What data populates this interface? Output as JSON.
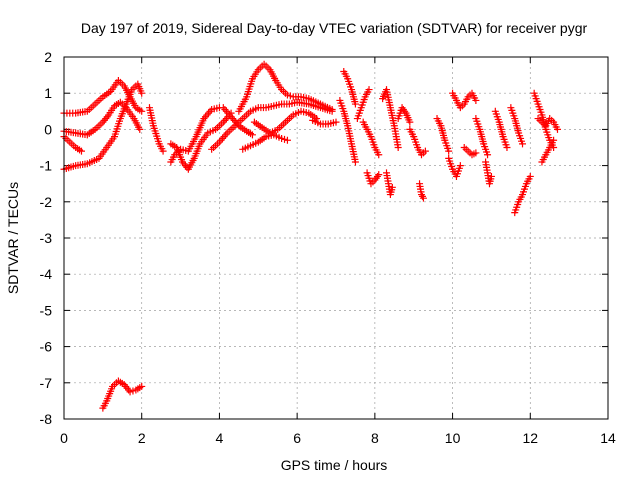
{
  "chart_data": {
    "type": "scatter",
    "title": "Day 197 of 2019, Sidereal Day-to-day VTEC variation (SDTVAR) for receiver pygr",
    "xlabel": "GPS time / hours",
    "ylabel": "SDTVAR / TECUs",
    "xlim": [
      0,
      14
    ],
    "ylim": [
      -8,
      2
    ],
    "xticks": [
      "0",
      "2",
      "4",
      "6",
      "8",
      "10",
      "12",
      "14"
    ],
    "yticks": [
      "2",
      "1",
      "0",
      "-1",
      "-2",
      "-3",
      "-4",
      "-5",
      "-6",
      "-7",
      "-8"
    ],
    "grid": true,
    "marker": "+",
    "marker_color": "#ff0000",
    "series": [
      {
        "name": "tracks",
        "tracks": [
          {
            "x": [
              0.0,
              0.3,
              0.6,
              0.9,
              1.1,
              1.3,
              1.45,
              1.6,
              1.75,
              1.9,
              2.0
            ],
            "y": [
              -1.1,
              -1.0,
              -0.95,
              -0.8,
              -0.5,
              -0.2,
              0.3,
              0.7,
              1.1,
              1.25,
              1.0
            ]
          },
          {
            "x": [
              0.0,
              0.3,
              0.6,
              0.8,
              1.0,
              1.2,
              1.4,
              1.55,
              1.7,
              1.85,
              2.0
            ],
            "y": [
              0.45,
              0.45,
              0.5,
              0.7,
              0.9,
              1.05,
              1.35,
              1.2,
              0.9,
              0.6,
              0.5
            ]
          },
          {
            "x": [
              0.0,
              0.3,
              0.6,
              0.8,
              1.0,
              1.15,
              1.3,
              1.45,
              1.6,
              1.8,
              1.95
            ],
            "y": [
              -0.05,
              -0.1,
              -0.15,
              0.0,
              0.2,
              0.4,
              0.65,
              0.75,
              0.6,
              0.3,
              0.0
            ]
          },
          {
            "x": [
              0.0,
              0.15,
              0.3,
              0.45
            ],
            "y": [
              -0.2,
              -0.35,
              -0.5,
              -0.6
            ]
          },
          {
            "x": [
              1.0,
              1.1,
              1.25,
              1.4,
              1.55,
              1.7,
              1.85,
              2.0
            ],
            "y": [
              -7.7,
              -7.5,
              -7.1,
              -6.95,
              -7.05,
              -7.25,
              -7.2,
              -7.1
            ]
          },
          {
            "x": [
              2.2,
              2.3,
              2.45,
              2.55
            ],
            "y": [
              0.6,
              0.1,
              -0.4,
              -0.6
            ]
          },
          {
            "x": [
              2.75,
              2.85,
              3.0,
              3.2,
              3.4,
              3.6,
              3.8,
              4.0
            ],
            "y": [
              -0.9,
              -0.7,
              -0.55,
              -0.6,
              -0.2,
              0.3,
              0.55,
              0.6
            ]
          },
          {
            "x": [
              2.75,
              2.9,
              3.05,
              3.2,
              3.35,
              3.5,
              3.7,
              3.9,
              4.1,
              4.3
            ],
            "y": [
              -0.4,
              -0.5,
              -0.9,
              -1.1,
              -0.8,
              -0.4,
              -0.1,
              0.0,
              0.2,
              0.45
            ]
          },
          {
            "x": [
              4.1,
              4.3,
              4.5,
              4.7,
              4.85
            ],
            "y": [
              0.6,
              0.35,
              0.1,
              -0.05,
              -0.15
            ]
          },
          {
            "x": [
              3.8,
              4.0,
              4.2,
              4.4,
              4.6,
              4.8,
              5.0,
              5.2,
              5.4,
              5.6,
              5.8,
              6.0,
              6.3,
              6.6,
              6.9
            ],
            "y": [
              -0.55,
              -0.35,
              -0.1,
              0.1,
              0.3,
              0.5,
              0.6,
              0.6,
              0.65,
              0.7,
              0.7,
              0.75,
              0.7,
              0.6,
              0.5
            ]
          },
          {
            "x": [
              4.5,
              4.7,
              4.85,
              5.0,
              5.15,
              5.3,
              5.45,
              5.6,
              5.75,
              5.9,
              6.1,
              6.3,
              6.6,
              6.9
            ],
            "y": [
              0.5,
              0.9,
              1.4,
              1.65,
              1.8,
              1.65,
              1.35,
              1.1,
              0.95,
              0.9,
              0.9,
              0.85,
              0.7,
              0.55
            ]
          },
          {
            "x": [
              4.6,
              4.8,
              5.0,
              5.2,
              5.4,
              5.6,
              5.75
            ],
            "y": [
              -0.55,
              -0.45,
              -0.35,
              -0.2,
              -0.15,
              -0.25,
              -0.3
            ]
          },
          {
            "x": [
              4.9,
              5.1,
              5.3,
              5.5,
              5.7,
              5.9,
              6.1,
              6.3,
              6.5
            ],
            "y": [
              0.2,
              0.05,
              -0.1,
              0.0,
              0.2,
              0.4,
              0.5,
              0.45,
              0.3
            ]
          },
          {
            "x": [
              6.4,
              6.6,
              6.8,
              7.0
            ],
            "y": [
              0.25,
              0.15,
              0.15,
              0.2
            ]
          },
          {
            "x": [
              7.1,
              7.2,
              7.3,
              7.4,
              7.5
            ],
            "y": [
              0.8,
              0.5,
              0.1,
              -0.4,
              -0.9
            ]
          },
          {
            "x": [
              7.2,
              7.3,
              7.4,
              7.5
            ],
            "y": [
              1.6,
              1.4,
              1.1,
              0.7
            ]
          },
          {
            "x": [
              7.55,
              7.65,
              7.75,
              7.85
            ],
            "y": [
              0.3,
              0.6,
              0.9,
              1.1
            ]
          },
          {
            "x": [
              7.8,
              7.9,
              8.0,
              8.1
            ],
            "y": [
              -1.2,
              -1.5,
              -1.4,
              -1.25
            ]
          },
          {
            "x": [
              7.7,
              7.8,
              7.9,
              8.0,
              8.1
            ],
            "y": [
              0.2,
              0.0,
              -0.2,
              -0.5,
              -0.7
            ]
          },
          {
            "x": [
              8.2,
              8.3,
              8.4,
              8.5,
              8.6
            ],
            "y": [
              0.85,
              1.1,
              0.6,
              0.1,
              -0.5
            ]
          },
          {
            "x": [
              8.3,
              8.35,
              8.4,
              8.45
            ],
            "y": [
              -1.2,
              -1.5,
              -1.8,
              -1.6
            ]
          },
          {
            "x": [
              8.6,
              8.7,
              8.8,
              8.9
            ],
            "y": [
              0.3,
              0.6,
              0.45,
              0.2
            ]
          },
          {
            "x": [
              8.9,
              9.0,
              9.1,
              9.2,
              9.3
            ],
            "y": [
              0.0,
              -0.2,
              -0.5,
              -0.7,
              -0.6
            ]
          },
          {
            "x": [
              9.15,
              9.2,
              9.25
            ],
            "y": [
              -1.5,
              -1.8,
              -1.9
            ]
          },
          {
            "x": [
              9.6,
              9.7,
              9.8,
              9.9
            ],
            "y": [
              0.3,
              0.1,
              -0.3,
              -0.6
            ]
          },
          {
            "x": [
              9.9,
              10.0,
              10.1,
              10.2
            ],
            "y": [
              -0.8,
              -1.1,
              -1.3,
              -1.0
            ]
          },
          {
            "x": [
              10.0,
              10.1,
              10.2,
              10.3,
              10.4,
              10.5,
              10.6
            ],
            "y": [
              1.0,
              0.8,
              0.6,
              0.7,
              0.9,
              1.0,
              0.8
            ]
          },
          {
            "x": [
              10.3,
              10.4,
              10.5,
              10.6
            ],
            "y": [
              -0.5,
              -0.6,
              -0.7,
              -0.65
            ]
          },
          {
            "x": [
              10.6,
              10.7,
              10.8,
              10.9
            ],
            "y": [
              0.3,
              0.0,
              -0.4,
              -0.7
            ]
          },
          {
            "x": [
              10.85,
              10.9,
              10.95,
              11.0
            ],
            "y": [
              -0.9,
              -1.2,
              -1.5,
              -1.3
            ]
          },
          {
            "x": [
              11.1,
              11.2,
              11.3,
              11.4
            ],
            "y": [
              0.5,
              0.2,
              -0.2,
              -0.5
            ]
          },
          {
            "x": [
              11.5,
              11.6,
              11.7,
              11.8
            ],
            "y": [
              0.6,
              0.3,
              -0.1,
              -0.4
            ]
          },
          {
            "x": [
              11.6,
              11.7,
              11.8,
              11.9,
              12.0
            ],
            "y": [
              -2.3,
              -2.0,
              -1.8,
              -1.5,
              -1.3
            ]
          },
          {
            "x": [
              12.1,
              12.2,
              12.3,
              12.4,
              12.5,
              12.6
            ],
            "y": [
              1.0,
              0.7,
              0.4,
              0.0,
              -0.3,
              -0.5
            ]
          },
          {
            "x": [
              12.2,
              12.3,
              12.4,
              12.5,
              12.6,
              12.7
            ],
            "y": [
              0.3,
              0.2,
              0.1,
              0.3,
              0.2,
              0.0
            ]
          },
          {
            "x": [
              12.3,
              12.4,
              12.5,
              12.6
            ],
            "y": [
              -0.9,
              -0.7,
              -0.5,
              -0.3
            ]
          }
        ]
      }
    ]
  }
}
